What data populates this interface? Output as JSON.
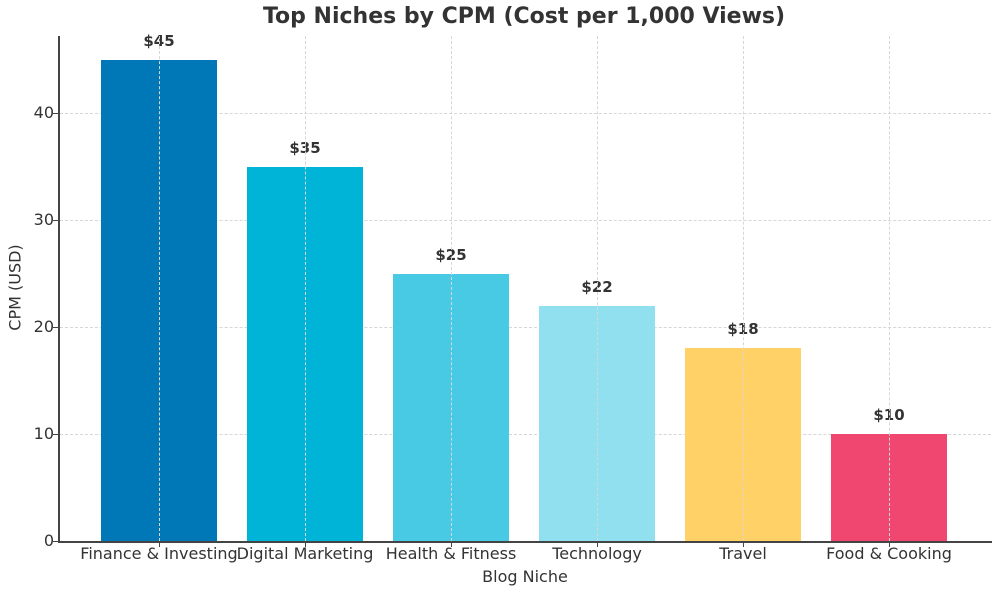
{
  "chart_data": {
    "type": "bar",
    "title": "Top Niches by CPM (Cost per 1,000 Views)",
    "xlabel": "Blog Niche",
    "ylabel": "CPM (USD)",
    "categories": [
      "Finance & Investing",
      "Digital Marketing",
      "Health & Fitness",
      "Technology",
      "Travel",
      "Food & Cooking"
    ],
    "values": [
      45,
      35,
      25,
      22,
      18,
      10
    ],
    "value_labels": [
      "$45",
      "$35",
      "$25",
      "$22",
      "$18",
      "$10"
    ],
    "colors": [
      "#0077b6",
      "#00b4d8",
      "#48cae4",
      "#90e0ef",
      "#ffd166",
      "#ef476f"
    ],
    "ylim": [
      0,
      47.2
    ],
    "yticks": [
      0,
      10,
      20,
      30,
      40
    ],
    "ytick_labels": [
      "0",
      "10",
      "20",
      "30",
      "40"
    ],
    "grid": true,
    "legend": null
  }
}
